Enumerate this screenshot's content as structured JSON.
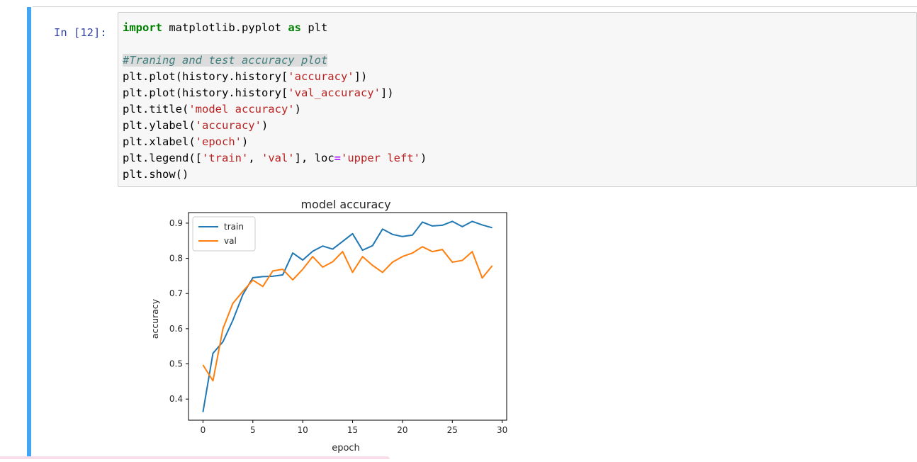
{
  "cell": {
    "prompt": "In [12]:",
    "code": {
      "line1": {
        "kw1": "import",
        "mid": " matplotlib.pyplot ",
        "kw2": "as",
        "rest": " plt"
      },
      "comment": "#Traning and test accuracy plot",
      "line3": {
        "pre": "plt.plot(history.history[",
        "str": "'accuracy'",
        "post": "])"
      },
      "line4": {
        "pre": "plt.plot(history.history[",
        "str": "'val_accuracy'",
        "post": "])"
      },
      "line5": {
        "pre": "plt.title(",
        "str": "'model accuracy'",
        "post": ")"
      },
      "line6": {
        "pre": "plt.ylabel(",
        "str": "'accuracy'",
        "post": ")"
      },
      "line7": {
        "pre": "plt.xlabel(",
        "str": "'epoch'",
        "post": ")"
      },
      "line8": {
        "pre": "plt.legend([",
        "str1": "'train'",
        "sep": ", ",
        "str2": "'val'",
        "mid": "], loc",
        "op": "=",
        "str3": "'upper left'",
        "post": ")"
      },
      "line9": "plt.show()"
    }
  },
  "chart_data": {
    "type": "line",
    "title": "model accuracy",
    "xlabel": "epoch",
    "ylabel": "accuracy",
    "xlim": [
      -1.45,
      30.45
    ],
    "ylim": [
      0.34,
      0.93
    ],
    "xticks": [
      0,
      5,
      10,
      15,
      20,
      25,
      30
    ],
    "yticks": [
      0.4,
      0.5,
      0.6,
      0.7,
      0.8,
      0.9
    ],
    "legend_position": "upper left",
    "grid": false,
    "x": [
      0,
      1,
      2,
      3,
      4,
      5,
      6,
      7,
      8,
      9,
      10,
      11,
      12,
      13,
      14,
      15,
      16,
      17,
      18,
      19,
      20,
      21,
      22,
      23,
      24,
      25,
      26,
      27,
      28,
      29
    ],
    "series": [
      {
        "name": "train",
        "color": "#1f77b4",
        "values": [
          0.363,
          0.53,
          0.563,
          0.624,
          0.697,
          0.745,
          0.748,
          0.749,
          0.753,
          0.815,
          0.795,
          0.82,
          0.835,
          0.826,
          0.848,
          0.87,
          0.823,
          0.836,
          0.883,
          0.868,
          0.862,
          0.866,
          0.903,
          0.892,
          0.894,
          0.905,
          0.89,
          0.905,
          0.895,
          0.887
        ]
      },
      {
        "name": "val",
        "color": "#ff7f0e",
        "values": [
          0.497,
          0.452,
          0.6,
          0.672,
          0.706,
          0.738,
          0.72,
          0.764,
          0.769,
          0.739,
          0.769,
          0.805,
          0.775,
          0.79,
          0.819,
          0.76,
          0.805,
          0.78,
          0.76,
          0.789,
          0.805,
          0.815,
          0.833,
          0.819,
          0.825,
          0.789,
          0.794,
          0.819,
          0.744,
          0.779
        ]
      }
    ]
  }
}
